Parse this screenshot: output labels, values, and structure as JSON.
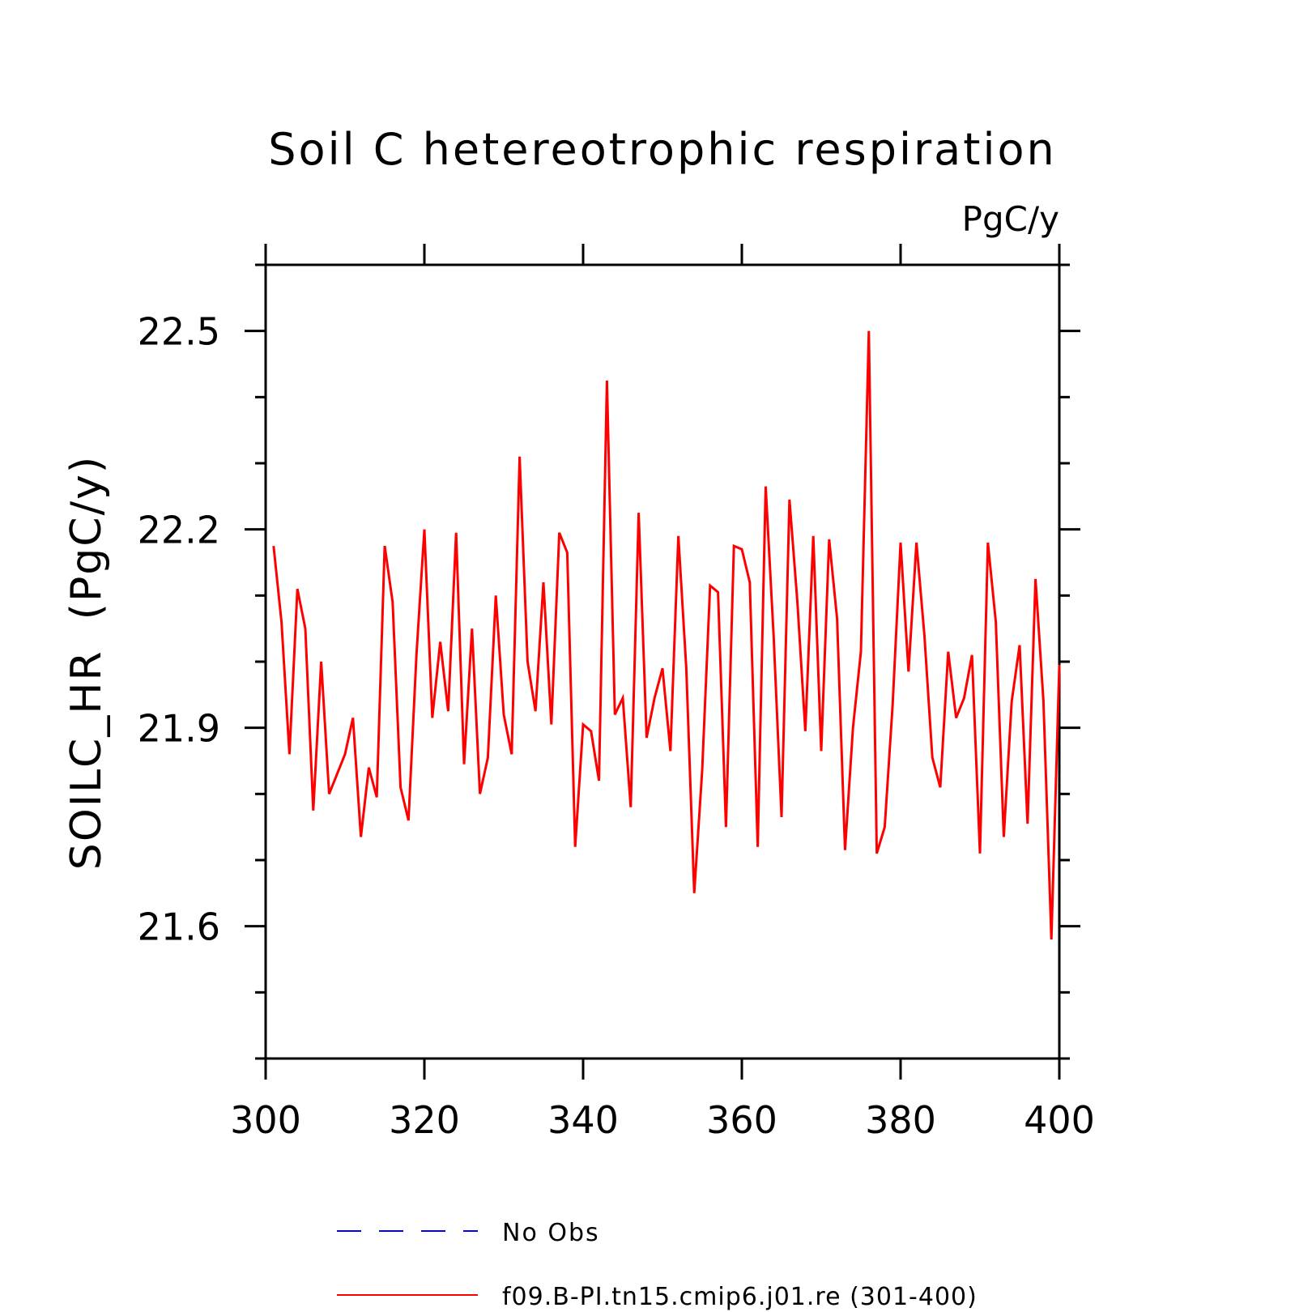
{
  "chart_data": {
    "type": "line",
    "title": "Soil C hetereotrophic respiration",
    "units_label": "PgC/y",
    "ylabel": "SOILC_HR  (PgC/y)",
    "xlabel": "",
    "xlim": [
      300,
      400
    ],
    "ylim": [
      21.4,
      22.6
    ],
    "x_ticks": [
      "300",
      "320",
      "340",
      "360",
      "380",
      "400"
    ],
    "y_ticks": [
      "21.6",
      "21.9",
      "22.2",
      "22.5"
    ],
    "legend": [
      {
        "label": "No Obs",
        "color": "#0000ff",
        "style": "dashed"
      },
      {
        "label": "f09.B-PI.tn15.cmip6.j01.re (301-400)",
        "color": "#ff0000",
        "style": "solid"
      }
    ],
    "series": [
      {
        "name": "f09.B-PI.tn15.cmip6.j01.re (301-400)",
        "color": "#ff0000",
        "x": [
          301,
          302,
          303,
          304,
          305,
          306,
          307,
          308,
          309,
          310,
          311,
          312,
          313,
          314,
          315,
          316,
          317,
          318,
          319,
          320,
          321,
          322,
          323,
          324,
          325,
          326,
          327,
          328,
          329,
          330,
          331,
          332,
          333,
          334,
          335,
          336,
          337,
          338,
          339,
          340,
          341,
          342,
          343,
          344,
          345,
          346,
          347,
          348,
          349,
          350,
          351,
          352,
          353,
          354,
          355,
          356,
          357,
          358,
          359,
          360,
          361,
          362,
          363,
          364,
          365,
          366,
          367,
          368,
          369,
          370,
          371,
          372,
          373,
          374,
          375,
          376,
          377,
          378,
          379,
          380,
          381,
          382,
          383,
          384,
          385,
          386,
          387,
          388,
          389,
          390,
          391,
          392,
          393,
          394,
          395,
          396,
          397,
          398,
          399,
          400
        ],
        "values": [
          22.175,
          22.06,
          21.86,
          22.11,
          22.05,
          21.775,
          22.0,
          21.8,
          21.83,
          21.86,
          21.915,
          21.735,
          21.84,
          21.795,
          22.175,
          22.09,
          21.81,
          21.76,
          22.01,
          22.2,
          21.915,
          22.03,
          21.925,
          22.195,
          21.845,
          22.05,
          21.8,
          21.855,
          22.1,
          21.92,
          21.86,
          22.31,
          22.0,
          21.925,
          22.12,
          21.905,
          22.195,
          22.165,
          21.72,
          21.905,
          21.895,
          21.82,
          22.425,
          21.92,
          21.945,
          21.78,
          22.225,
          21.885,
          21.945,
          21.99,
          21.865,
          22.19,
          21.99,
          21.65,
          21.835,
          22.115,
          22.105,
          21.75,
          22.175,
          22.17,
          22.12,
          21.72,
          22.265,
          22.04,
          21.765,
          22.245,
          22.09,
          21.895,
          22.19,
          21.865,
          22.185,
          22.065,
          21.715,
          21.9,
          22.015,
          22.5,
          21.71,
          21.75,
          21.935,
          22.18,
          21.985,
          22.18,
          22.04,
          21.855,
          21.81,
          22.015,
          21.915,
          21.945,
          22.01,
          21.71,
          22.18,
          22.06,
          21.735,
          21.94,
          22.025,
          21.755,
          22.125,
          21.94,
          21.58,
          21.995
        ]
      }
    ]
  }
}
